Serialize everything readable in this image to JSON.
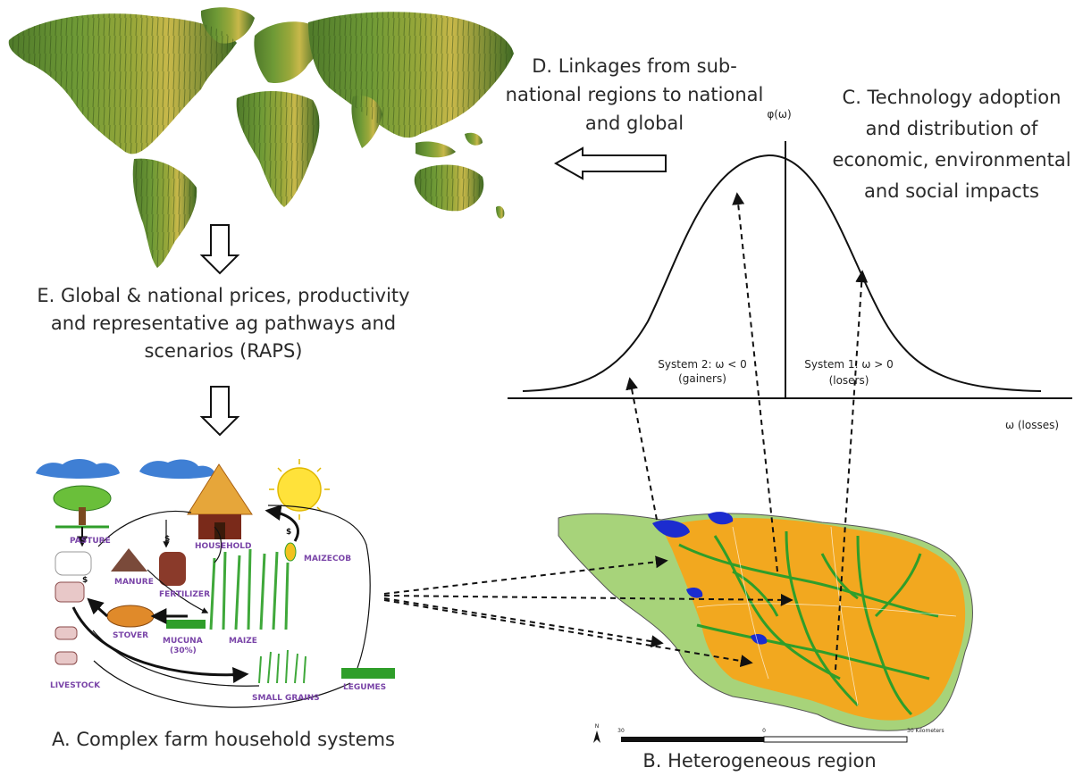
{
  "labels": {
    "a": "A. Complex farm household systems",
    "b": "B. Heterogeneous region",
    "c": "C. Technology adoption and distribution of economic, environmental and social impacts",
    "d": "D. Linkages from sub-national regions to national and global",
    "e": "E. Global & national prices, productivity and representative ag pathways and scenarios (RAPS)"
  },
  "distribution": {
    "y_axis_label": "φ(ω)",
    "x_axis_label": "ω (losses)",
    "system2_line1": "System 2: ω < 0",
    "system2_line2": "(gainers)",
    "system1_line1": "System 1: ω > 0",
    "system1_line2": "(losers)"
  },
  "farm": {
    "pasture": "PASTURE",
    "household": "HOUSEHOLD",
    "maizecob": "MAIZECOB",
    "manure": "MANURE",
    "fertilizer": "FERTILIZER",
    "stover": "STOVER",
    "mucuna": "MUCUNA",
    "mucuna_pct": "(30%)",
    "maize": "MAIZE",
    "livestock": "LIVESTOCK",
    "small_grains": "SMALL GRAINS",
    "legumes": "LEGUMES",
    "dollar": "$"
  },
  "map": {
    "scale_left": "30",
    "scale_mid": "0",
    "scale_right": "30 Kilometers",
    "north": "N"
  },
  "colors": {
    "land_gold": "#f2a81f",
    "land_green": "#a7d37a",
    "river_green": "#2f9e2a",
    "water_blue": "#1c2ccf",
    "cloud_blue": "#3f7fd4",
    "sun_yellow": "#ffe23a"
  }
}
